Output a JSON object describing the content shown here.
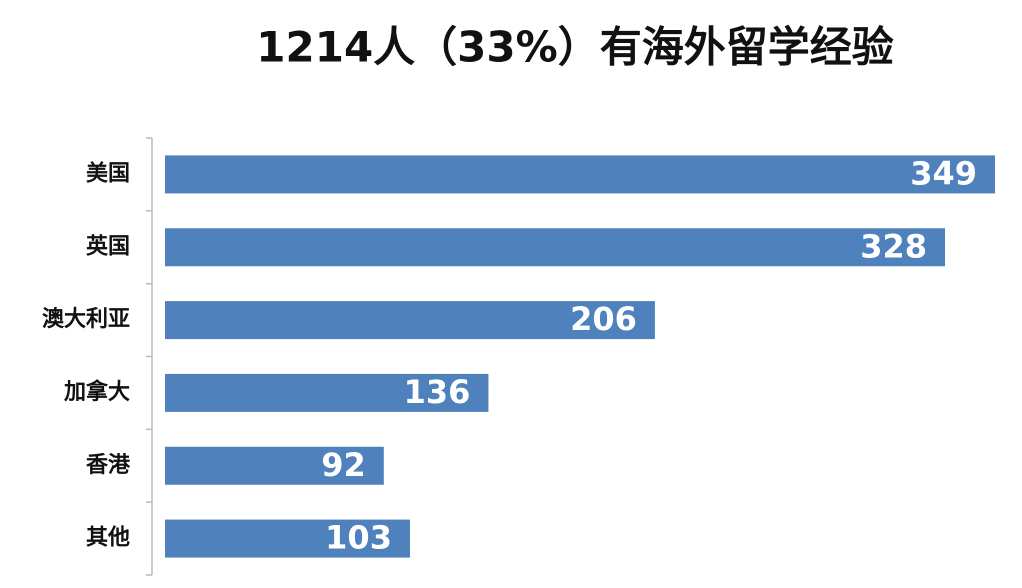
{
  "chart_data": {
    "type": "bar",
    "orientation": "horizontal",
    "title": "1214人（33%）有海外留学经验",
    "categories": [
      "美国",
      "英国",
      "澳大利亚",
      "加拿大",
      "香港",
      "其他"
    ],
    "values": [
      349,
      328,
      206,
      136,
      92,
      103
    ],
    "color": "#4f81bd"
  }
}
